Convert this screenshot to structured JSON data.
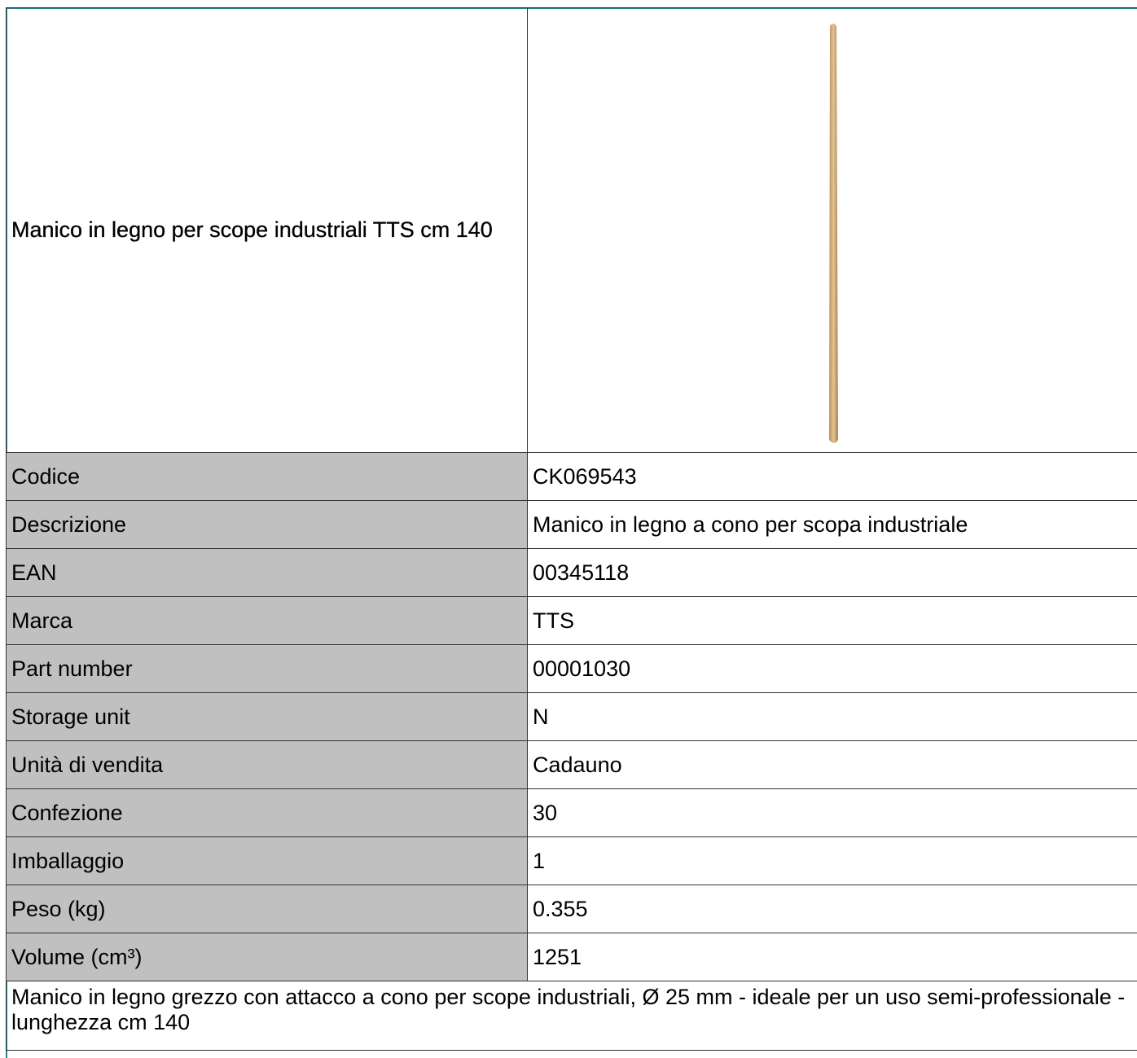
{
  "product": {
    "title": "Manico in legno per scope industriali TTS cm 140",
    "specs": [
      [
        "Codice",
        "CK069543"
      ],
      [
        "Descrizione",
        "Manico in legno a cono per scopa industriale"
      ],
      [
        "EAN",
        "00345118"
      ],
      [
        "Marca",
        "TTS"
      ],
      [
        "Part number",
        "00001030"
      ],
      [
        "Storage unit",
        "N"
      ],
      [
        "Unità di vendita",
        "Cadauno"
      ],
      [
        "Confezione",
        "30"
      ],
      [
        "Imballaggio",
        "1"
      ],
      [
        "Peso (kg)",
        "0.355"
      ],
      [
        "Volume (cm³)",
        "1251"
      ]
    ],
    "description": "Manico in legno grezzo con attacco a cono per scope industriali, Ø 25 mm - ideale per un uso semi-professionale - lunghezza cm 140"
  }
}
